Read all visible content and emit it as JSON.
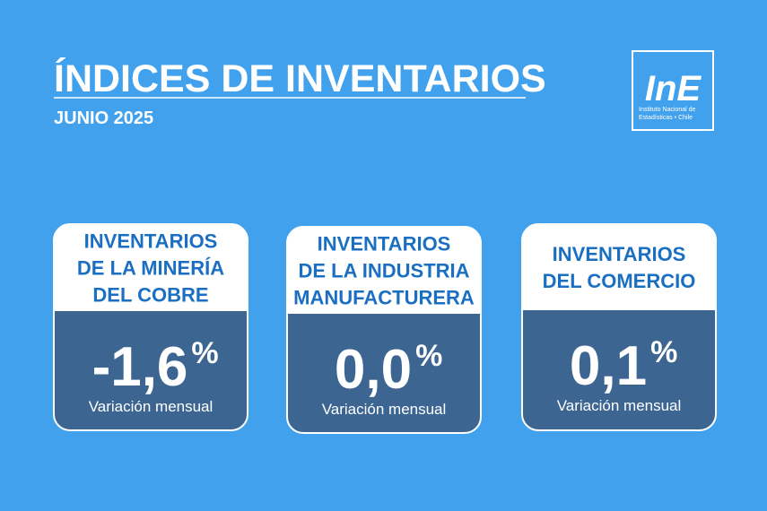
{
  "header": {
    "title": "ÍNDICES DE INVENTARIOS",
    "subtitle": "JUNIO 2025"
  },
  "logo": {
    "mark": "InE",
    "lines": [
      "Instituto Nacional de",
      "Estadísticas • Chile"
    ]
  },
  "cards": [
    {
      "title_lines": [
        "INVENTARIOS",
        "DE LA MINERÍA",
        "DEL COBRE"
      ],
      "value": "-1,6",
      "unit": "%",
      "label": "Variación mensual"
    },
    {
      "title_lines": [
        "INVENTARIOS",
        "DE LA INDUSTRIA",
        "MANUFACTURERA"
      ],
      "value": "0,0",
      "unit": "%",
      "label": "Variación mensual"
    },
    {
      "title_lines": [
        "INVENTARIOS",
        "DEL COMERCIO"
      ],
      "value": "0,1",
      "unit": "%",
      "label": "Variación mensual"
    }
  ]
}
